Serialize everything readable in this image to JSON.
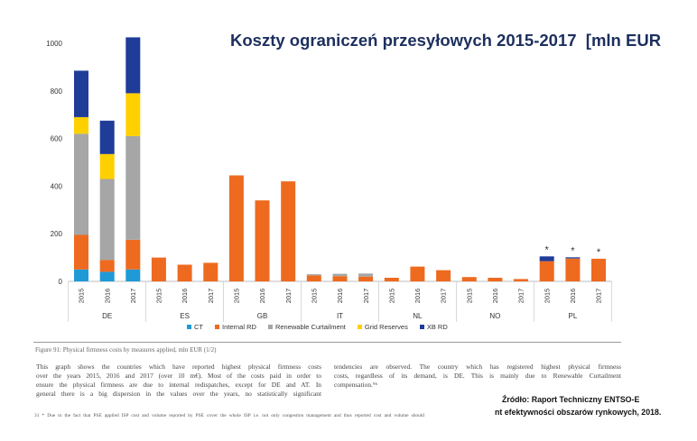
{
  "chart_data": {
    "type": "bar",
    "stacked": true,
    "title": "Koszty ograniczeń przesyłowych 2015-2017  [mln EUR",
    "ylim": [
      0,
      1000
    ],
    "yticks": [
      0,
      200,
      400,
      600,
      800,
      1000
    ],
    "grid": false,
    "legend_position": "bottom",
    "groups": [
      {
        "label": "DE",
        "years": [
          "2015",
          "2016",
          "2017"
        ]
      },
      {
        "label": "ES",
        "years": [
          "2015",
          "2016",
          "2017"
        ]
      },
      {
        "label": "GB",
        "years": [
          "2015",
          "2016",
          "2017"
        ]
      },
      {
        "label": "IT",
        "years": [
          "2015",
          "2016",
          "2017"
        ]
      },
      {
        "label": "NL",
        "years": [
          "2015",
          "2016",
          "2017"
        ]
      },
      {
        "label": "NO",
        "years": [
          "2015",
          "2016",
          "2017"
        ]
      },
      {
        "label": "PL",
        "years": [
          "2015",
          "2016",
          "2017"
        ]
      }
    ],
    "series": [
      {
        "name": "CT",
        "color": "#1f9ad6",
        "values": [
          50,
          40,
          50,
          0,
          0,
          0,
          0,
          0,
          0,
          0,
          0,
          0,
          0,
          0,
          0,
          0,
          0,
          0,
          0,
          0,
          0
        ]
      },
      {
        "name": "Internal RD",
        "color": "#ee6a1f",
        "values": [
          145,
          50,
          125,
          100,
          70,
          78,
          445,
          340,
          420,
          25,
          22,
          20,
          15,
          62,
          47,
          18,
          15,
          10,
          85,
          96,
          95
        ]
      },
      {
        "name": "Renewable Curtailment",
        "color": "#a6a6a6",
        "values": [
          425,
          340,
          435,
          0,
          0,
          0,
          0,
          0,
          0,
          5,
          10,
          13,
          0,
          0,
          0,
          0,
          0,
          0,
          0,
          0,
          0
        ]
      },
      {
        "name": "Grid Reserves",
        "color": "#ffd000",
        "values": [
          70,
          105,
          180,
          0,
          0,
          0,
          0,
          0,
          0,
          0,
          0,
          0,
          0,
          0,
          0,
          0,
          0,
          0,
          0,
          0,
          0
        ]
      },
      {
        "name": "XB RD",
        "color": "#1f3c98",
        "values": [
          195,
          140,
          235,
          0,
          0,
          0,
          0,
          0,
          0,
          0,
          0,
          0,
          0,
          0,
          0,
          0,
          0,
          0,
          20,
          5,
          0
        ]
      }
    ],
    "annotations": [
      {
        "group": "PL",
        "year": "2015",
        "text": "*"
      },
      {
        "group": "PL",
        "year": "2016",
        "text": "*"
      },
      {
        "group": "PL",
        "year": "2017",
        "text": "*"
      }
    ]
  },
  "document": {
    "figure_caption": "Figure 91: Physical firmness costs by measures applied, mln EUR (1/2)",
    "body_left_lines": [
      "This graph shows the countries which have reported highest physical firmness costs",
      "over the years 2015, 2016 and 2017 (over 10 m€). Most of the costs paid in order to",
      "ensure the physical firmness are due to internal redispatches, except for DE and AT. In",
      "general there is a big dispersion in the values over the years, no statistically significant"
    ],
    "body_right_lines": [
      "tendencies are observed. The country which has registered highest physical firmness",
      "costs, regardless of its demand, is DE. This is mainly due to Renewable Curtailment",
      "compensation.⁹⁶"
    ],
    "footnote": "31 * Due to the fact that PSE applied ISP cost and volume reported by PSE cover the whole ISP i.e. not only congestion management and thus reported cost and volume should"
  },
  "source": {
    "line1": "Źródło: Raport Techniczny ENTSO-E",
    "line2": "nt efektywności obszarów rynkowych, 2018."
  }
}
